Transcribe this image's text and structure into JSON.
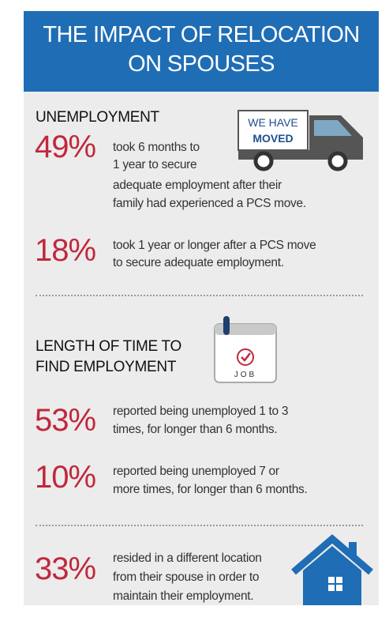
{
  "header": {
    "title_lines": [
      "THE IMPACT OF RELOCATION",
      "ON SPOUSES"
    ]
  },
  "sections": [
    {
      "heading_lines": [
        "UNEMPLOYMENT"
      ],
      "icon_text": [
        "WE HAVE",
        "MOVED"
      ],
      "stats": [
        {
          "figure": "49%",
          "lines": [
            "took 6 months to",
            "1 year to secure",
            "adequate employment after their",
            "family had experienced a PCS move."
          ]
        },
        {
          "figure": "18%",
          "lines": [
            "took 1 year or longer after a PCS move",
            "to secure adequate employment."
          ]
        }
      ]
    },
    {
      "heading_lines": [
        "LENGTH OF TIME TO",
        "FIND EMPLOYMENT"
      ],
      "icon_text": [
        "JOB"
      ],
      "stats": [
        {
          "figure": "53%",
          "lines": [
            "reported being unemployed 1 to 3",
            "times, for longer than 6 months."
          ]
        },
        {
          "figure": "10%",
          "lines": [
            "reported being unemployed 7 or",
            "more times, for longer than 6 months."
          ]
        }
      ]
    },
    {
      "heading_lines": [],
      "icon_text": [],
      "stats": [
        {
          "figure": "33%",
          "lines": [
            "resided in a different location",
            "from their spouse in order to",
            "maintain their employment."
          ]
        }
      ]
    }
  ]
}
